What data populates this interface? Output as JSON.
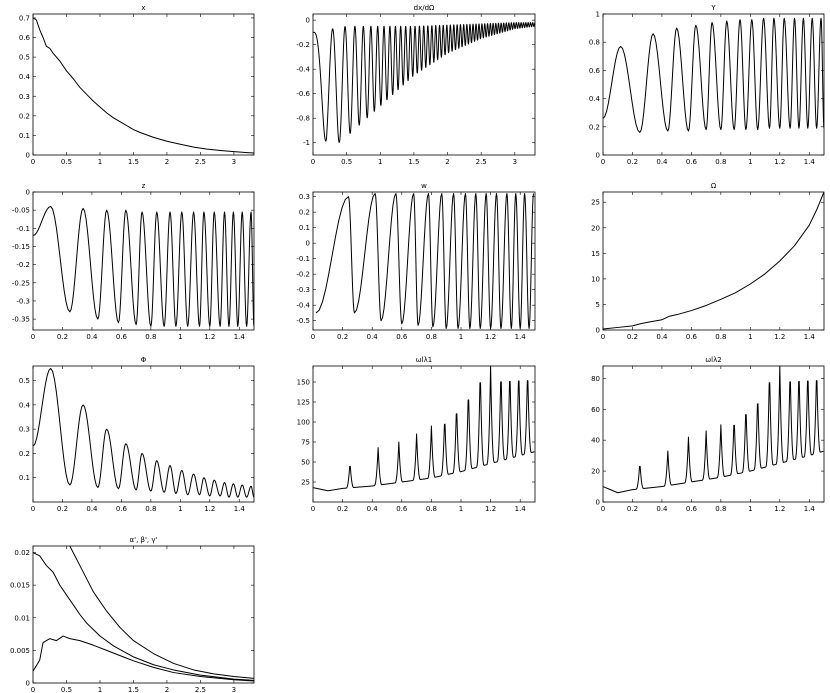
{
  "chart_data": [
    {
      "type": "line",
      "title": "x",
      "xlim": [
        0,
        3.3
      ],
      "ylim": [
        0,
        0.72
      ],
      "xticks": [
        0,
        0.5,
        1,
        1.5,
        2,
        2.5,
        3
      ],
      "xtick_labels": [
        "0",
        "0.5",
        "1",
        "1.5",
        "2",
        "2.5",
        "3"
      ],
      "yticks": [
        0,
        0.1,
        0.2,
        0.3,
        0.4,
        0.5,
        0.6,
        0.7
      ],
      "ytick_labels": [
        "0",
        "0.1",
        "0.2",
        "0.3",
        "0.4",
        "0.5",
        "0.6",
        "0.7"
      ],
      "series": [
        {
          "x": [
            0,
            0.05,
            0.1,
            0.15,
            0.2,
            0.25,
            0.3,
            0.4,
            0.5,
            0.6,
            0.7,
            0.8,
            0.9,
            1.0,
            1.1,
            1.2,
            1.3,
            1.4,
            1.5,
            1.6,
            1.8,
            2.0,
            2.2,
            2.4,
            2.6,
            2.8,
            3.0,
            3.2,
            3.3
          ],
          "y": [
            0.7,
            0.69,
            0.64,
            0.6,
            0.555,
            0.545,
            0.52,
            0.48,
            0.43,
            0.39,
            0.345,
            0.31,
            0.275,
            0.245,
            0.215,
            0.19,
            0.17,
            0.15,
            0.13,
            0.115,
            0.09,
            0.07,
            0.055,
            0.04,
            0.03,
            0.023,
            0.017,
            0.012,
            0.01
          ]
        }
      ]
    },
    {
      "type": "line",
      "title": "dx/dΩ",
      "xlim": [
        0,
        3.3
      ],
      "ylim": [
        -1.1,
        0.05
      ],
      "xticks": [
        0,
        0.5,
        1,
        1.5,
        2,
        2.5,
        3
      ],
      "xtick_labels": [
        "0",
        "0.5",
        "1",
        "1.5",
        "2",
        "2.5",
        "3"
      ],
      "yticks": [
        0,
        -0.2,
        -0.4,
        -0.6,
        -0.8,
        -1
      ],
      "ytick_labels": [
        "0",
        "-0.2",
        "-0.4",
        "-0.6",
        "-0.8",
        "-1"
      ],
      "series": [
        {
          "envelope_upper_x": [
            0,
            0.5,
            1,
            1.5,
            2,
            2.5,
            3,
            3.3
          ],
          "envelope_upper_y": [
            -0.1,
            -0.05,
            -0.05,
            -0.05,
            -0.04,
            -0.03,
            -0.02,
            -0.02
          ],
          "envelope_lower_x": [
            0,
            0.2,
            0.5,
            1.0,
            1.5,
            2.0,
            2.5,
            3.0,
            3.3
          ],
          "envelope_lower_y": [
            -0.1,
            -1.08,
            -0.95,
            -0.7,
            -0.45,
            -0.27,
            -0.15,
            -0.07,
            -0.05
          ]
        }
      ]
    },
    {
      "type": "line",
      "title": "Y",
      "xlim": [
        0,
        1.5
      ],
      "ylim": [
        0,
        1
      ],
      "xticks": [
        0,
        0.2,
        0.4,
        0.6,
        0.8,
        1,
        1.2,
        1.4
      ],
      "xtick_labels": [
        "0",
        "0.2",
        "0.4",
        "0.6",
        "0.8",
        "1",
        "1.2",
        "1.4"
      ],
      "yticks": [
        0,
        0.2,
        0.4,
        0.6,
        0.8,
        1
      ],
      "ytick_labels": [
        "0",
        "0.2",
        "0.4",
        "0.6",
        "0.8",
        "1"
      ],
      "series": [
        {
          "peaks_x": [
            0.12,
            0.34,
            0.5,
            0.63,
            0.74,
            0.84,
            0.93,
            1.01,
            1.09,
            1.16,
            1.23,
            1.3,
            1.36,
            1.42,
            1.48
          ],
          "peaks_y": [
            0.77,
            0.86,
            0.9,
            0.92,
            0.94,
            0.95,
            0.96,
            0.96,
            0.97,
            0.97,
            0.97,
            0.97,
            0.97,
            0.97,
            0.97
          ],
          "troughs_x": [
            0,
            0.25,
            0.44,
            0.58,
            0.7,
            0.8,
            0.89,
            0.97,
            1.05,
            1.13,
            1.2,
            1.27,
            1.33,
            1.39,
            1.45,
            1.5
          ],
          "troughs_y": [
            0.26,
            0.16,
            0.17,
            0.17,
            0.18,
            0.18,
            0.18,
            0.18,
            0.18,
            0.19,
            0.19,
            0.19,
            0.19,
            0.19,
            0.19,
            0.19
          ]
        }
      ]
    },
    {
      "type": "line",
      "title": "z",
      "xlim": [
        0,
        1.5
      ],
      "ylim": [
        -0.38,
        0
      ],
      "xticks": [
        0,
        0.2,
        0.4,
        0.6,
        0.8,
        1,
        1.2,
        1.4
      ],
      "xtick_labels": [
        "0",
        "0.2",
        "0.4",
        "0.6",
        "0.8",
        "1",
        "1.2",
        "1.4"
      ],
      "yticks": [
        0,
        -0.05,
        -0.1,
        -0.15,
        -0.2,
        -0.25,
        -0.3,
        -0.35
      ],
      "ytick_labels": [
        "0",
        "-0.05",
        "-0.1",
        "-0.15",
        "-0.2",
        "-0.25",
        "-0.3",
        "-0.35"
      ],
      "series": [
        {
          "peaks_x": [
            0.12,
            0.34,
            0.5,
            0.63,
            0.74,
            0.84,
            0.93,
            1.01,
            1.09,
            1.16,
            1.23,
            1.3,
            1.36,
            1.42,
            1.48
          ],
          "peaks_y": [
            -0.04,
            -0.045,
            -0.05,
            -0.05,
            -0.055,
            -0.055,
            -0.055,
            -0.055,
            -0.055,
            -0.055,
            -0.055,
            -0.055,
            -0.055,
            -0.055,
            -0.055
          ],
          "troughs_x": [
            0,
            0.25,
            0.44,
            0.58,
            0.7,
            0.8,
            0.89,
            0.97,
            1.05,
            1.13,
            1.2,
            1.27,
            1.33,
            1.39,
            1.45,
            1.5
          ],
          "troughs_y": [
            -0.12,
            -0.33,
            -0.35,
            -0.36,
            -0.365,
            -0.37,
            -0.37,
            -0.37,
            -0.37,
            -0.37,
            -0.37,
            -0.37,
            -0.37,
            -0.37,
            -0.37,
            -0.37
          ]
        }
      ]
    },
    {
      "type": "line",
      "title": "w",
      "xlim": [
        0,
        1.5
      ],
      "ylim": [
        -0.56,
        0.33
      ],
      "xticks": [
        0,
        0.2,
        0.4,
        0.6,
        0.8,
        1,
        1.2,
        1.4
      ],
      "xtick_labels": [
        "0",
        "0.2",
        "0.4",
        "0.6",
        "0.8",
        "1",
        "1.2",
        "1.4"
      ],
      "yticks": [
        0.3,
        0.2,
        0.1,
        0,
        -0.1,
        -0.2,
        -0.3,
        -0.4,
        -0.5
      ],
      "ytick_labels": [
        "0.3",
        "0.2",
        "0.1",
        "0",
        "-0.1",
        "-0.2",
        "-0.3",
        "-0.4",
        "-0.5"
      ],
      "series": [
        {
          "peaks_x": [
            0.24,
            0.42,
            0.56,
            0.68,
            0.78,
            0.87,
            0.95,
            1.03,
            1.1,
            1.17,
            1.24,
            1.31,
            1.37,
            1.43,
            1.49
          ],
          "peaks_y": [
            0.3,
            0.32,
            0.32,
            0.32,
            0.32,
            0.32,
            0.32,
            0.32,
            0.32,
            0.32,
            0.32,
            0.32,
            0.32,
            0.32,
            0.32
          ],
          "troughs_x": [
            0.02,
            0.28,
            0.46,
            0.6,
            0.71,
            0.81,
            0.9,
            0.98,
            1.06,
            1.13,
            1.2,
            1.27,
            1.34,
            1.4,
            1.46
          ],
          "troughs_y": [
            -0.45,
            -0.45,
            -0.5,
            -0.52,
            -0.53,
            -0.54,
            -0.55,
            -0.55,
            -0.55,
            -0.55,
            -0.55,
            -0.55,
            -0.55,
            -0.55,
            -0.55
          ]
        }
      ]
    },
    {
      "type": "line",
      "title": "Ω",
      "xlim": [
        0,
        1.5
      ],
      "ylim": [
        0,
        27
      ],
      "xticks": [
        0,
        0.2,
        0.4,
        0.6,
        0.8,
        1,
        1.2,
        1.4
      ],
      "xtick_labels": [
        "0",
        "0.2",
        "0.4",
        "0.6",
        "0.8",
        "1",
        "1.2",
        "1.4"
      ],
      "yticks": [
        0,
        5,
        10,
        15,
        20,
        25
      ],
      "ytick_labels": [
        "0",
        "5",
        "10",
        "15",
        "20",
        "25"
      ],
      "series": [
        {
          "x": [
            0,
            0.1,
            0.2,
            0.25,
            0.3,
            0.4,
            0.45,
            0.5,
            0.6,
            0.7,
            0.8,
            0.9,
            1.0,
            1.1,
            1.2,
            1.3,
            1.4,
            1.45,
            1.5
          ],
          "y": [
            0.2,
            0.5,
            0.8,
            1.2,
            1.5,
            2.0,
            2.7,
            3.0,
            3.8,
            4.8,
            6.0,
            7.3,
            9.0,
            11.0,
            13.5,
            16.5,
            20.5,
            23.5,
            27.0
          ]
        }
      ]
    },
    {
      "type": "line",
      "title": "Φ",
      "xlim": [
        0,
        1.5
      ],
      "ylim": [
        0,
        0.56
      ],
      "xticks": [
        0,
        0.2,
        0.4,
        0.6,
        0.8,
        1,
        1.2,
        1.4
      ],
      "xtick_labels": [
        "0",
        "0.2",
        "0.4",
        "0.6",
        "0.8",
        "1",
        "1.2",
        "1.4"
      ],
      "yticks": [
        0.1,
        0.2,
        0.3,
        0.4,
        0.5
      ],
      "ytick_labels": [
        "0.1",
        "0.2",
        "0.3",
        "0.4",
        "0.5"
      ],
      "series": [
        {
          "peaks_x": [
            0.12,
            0.34,
            0.5,
            0.63,
            0.74,
            0.84,
            0.93,
            1.01,
            1.09,
            1.16,
            1.23,
            1.3,
            1.36,
            1.42,
            1.48
          ],
          "peaks_y": [
            0.55,
            0.4,
            0.3,
            0.24,
            0.2,
            0.17,
            0.15,
            0.13,
            0.115,
            0.1,
            0.09,
            0.08,
            0.075,
            0.07,
            0.065
          ],
          "troughs_x": [
            0,
            0.25,
            0.44,
            0.58,
            0.7,
            0.8,
            0.89,
            0.97,
            1.05,
            1.13,
            1.2,
            1.27,
            1.33,
            1.39,
            1.45,
            1.5
          ],
          "troughs_y": [
            0.23,
            0.07,
            0.06,
            0.055,
            0.05,
            0.045,
            0.04,
            0.035,
            0.03,
            0.03,
            0.025,
            0.025,
            0.02,
            0.02,
            0.02,
            0.02
          ]
        }
      ]
    },
    {
      "type": "line",
      "title": "ωlλ1",
      "xlim": [
        0,
        1.5
      ],
      "ylim": [
        0,
        170
      ],
      "xticks": [
        0,
        0.2,
        0.4,
        0.6,
        0.8,
        1,
        1.2,
        1.4
      ],
      "xtick_labels": [
        "0",
        "0.2",
        "0.4",
        "0.6",
        "0.8",
        "1",
        "1.2",
        "1.4"
      ],
      "yticks": [
        25,
        50,
        75,
        100,
        125,
        150
      ],
      "ytick_labels": [
        "25",
        "50",
        "75",
        "100",
        "125",
        "150"
      ],
      "series": [
        {
          "spikes_x": [
            0.25,
            0.44,
            0.58,
            0.7,
            0.8,
            0.89,
            0.97,
            1.05,
            1.13,
            1.2,
            1.27,
            1.33,
            1.39,
            1.45
          ],
          "spikes_y": [
            50,
            68,
            75,
            85,
            95,
            110,
            125,
            145,
            170,
            170,
            170,
            170,
            170,
            170
          ],
          "baseline_x": [
            0,
            0.1,
            0.2,
            0.4,
            0.6,
            0.8,
            1.0,
            1.2,
            1.4,
            1.5
          ],
          "baseline_y": [
            18,
            14,
            17,
            20,
            25,
            30,
            38,
            48,
            58,
            63
          ]
        }
      ]
    },
    {
      "type": "line",
      "title": "ωlλ2",
      "xlim": [
        0,
        1.5
      ],
      "ylim": [
        0,
        88
      ],
      "xticks": [
        0,
        0.2,
        0.4,
        0.6,
        0.8,
        1,
        1.2,
        1.4
      ],
      "xtick_labels": [
        "0",
        "0.2",
        "0.4",
        "0.6",
        "0.8",
        "1",
        "1.2",
        "1.4"
      ],
      "yticks": [
        0,
        20,
        40,
        60,
        80
      ],
      "ytick_labels": [
        "0",
        "20",
        "40",
        "60",
        "80"
      ],
      "series": [
        {
          "spikes_x": [
            0.25,
            0.44,
            0.58,
            0.7,
            0.8,
            0.89,
            0.97,
            1.05,
            1.13,
            1.2,
            1.27,
            1.33,
            1.39,
            1.45
          ],
          "spikes_y": [
            26,
            33,
            42,
            46,
            50,
            56,
            64,
            72,
            88,
            88,
            88,
            88,
            88,
            88
          ],
          "baseline_x": [
            0,
            0.1,
            0.2,
            0.4,
            0.6,
            0.8,
            1.0,
            1.2,
            1.4,
            1.5
          ],
          "baseline_y": [
            10,
            6,
            8,
            10,
            13,
            16,
            20,
            25,
            30,
            33
          ]
        }
      ]
    },
    {
      "type": "line",
      "title": "α', β', γ'",
      "xlim": [
        0,
        3.3
      ],
      "ylim": [
        0,
        0.021
      ],
      "xticks": [
        0,
        0.5,
        1,
        1.5,
        2,
        2.5,
        3
      ],
      "xtick_labels": [
        "0",
        "0.5",
        "1",
        "1.5",
        "2",
        "2.5",
        "3"
      ],
      "yticks": [
        0,
        0.005,
        0.01,
        0.015,
        0.02
      ],
      "ytick_labels": [
        "0",
        "0.005",
        "0.01",
        "0.015",
        "0.02"
      ],
      "series": [
        {
          "x": [
            0.55,
            0.7,
            0.9,
            1.1,
            1.3,
            1.5,
            1.8,
            2.1,
            2.4,
            2.7,
            3.0,
            3.3
          ],
          "y": [
            0.021,
            0.018,
            0.014,
            0.011,
            0.0085,
            0.0065,
            0.0045,
            0.003,
            0.002,
            0.0014,
            0.001,
            0.0007
          ]
        },
        {
          "x": [
            0,
            0.1,
            0.2,
            0.3,
            0.4,
            0.5,
            0.6,
            0.7,
            0.8,
            1.0,
            1.2,
            1.5,
            1.8,
            2.1,
            2.5,
            3.0,
            3.3
          ],
          "y": [
            0.02,
            0.0195,
            0.018,
            0.017,
            0.015,
            0.0135,
            0.012,
            0.0105,
            0.0092,
            0.0072,
            0.0057,
            0.004,
            0.0028,
            0.002,
            0.0012,
            0.0006,
            0.0004
          ]
        },
        {
          "x": [
            0,
            0.1,
            0.15,
            0.25,
            0.35,
            0.45,
            0.55,
            0.7,
            0.9,
            1.1,
            1.3,
            1.5,
            1.8,
            2.1,
            2.5,
            3.0,
            3.3
          ],
          "y": [
            0.0018,
            0.0035,
            0.0062,
            0.0068,
            0.0065,
            0.0072,
            0.0068,
            0.0065,
            0.0058,
            0.005,
            0.0042,
            0.0034,
            0.0024,
            0.0016,
            0.001,
            0.0005,
            0.0003
          ]
        }
      ]
    }
  ]
}
